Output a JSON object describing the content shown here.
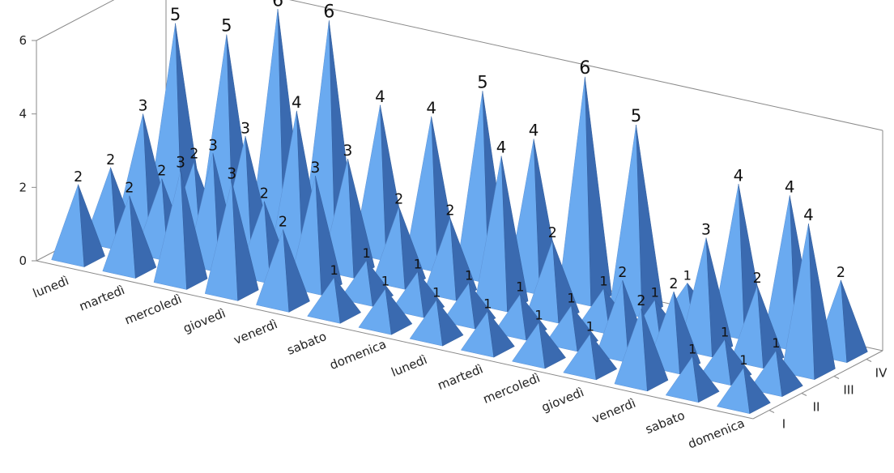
{
  "chart_data": {
    "type": "bar",
    "subtype": "3d-pyramid",
    "title": "",
    "xlabel": "",
    "ylabel": "",
    "ylim": [
      0,
      6
    ],
    "yticks": [
      "0",
      "2",
      "4",
      "6"
    ],
    "categories": [
      "lunedì",
      "martedì",
      "mercoledì",
      "giovedì",
      "venerdì",
      "sabato",
      "domenica",
      "lunedì",
      "martedì",
      "mercoledì",
      "giovedì",
      "venerdì",
      "sabato",
      "domenica"
    ],
    "series": [
      {
        "name": "I",
        "values": [
          2,
          2,
          3,
          3,
          2,
          1,
          1,
          1,
          1,
          1,
          1,
          2,
          1,
          1
        ]
      },
      {
        "name": "II",
        "values": [
          2,
          2,
          3,
          2,
          3,
          1,
          1,
          1,
          1,
          1,
          2,
          2,
          1,
          1
        ]
      },
      {
        "name": "III",
        "values": [
          3,
          2,
          3,
          4,
          3,
          2,
          2,
          4,
          2,
          1,
          1,
          3,
          2,
          4
        ]
      },
      {
        "name": "IV",
        "values": [
          5,
          5,
          6,
          6,
          4,
          4,
          5,
          4,
          6,
          5,
          1,
          4,
          4,
          2
        ]
      }
    ],
    "grid": false,
    "legend": "none",
    "colors": {
      "face_light": "#6aaaf0",
      "face_dark": "#3a6ab0",
      "axis": "#8a8a8a"
    }
  }
}
